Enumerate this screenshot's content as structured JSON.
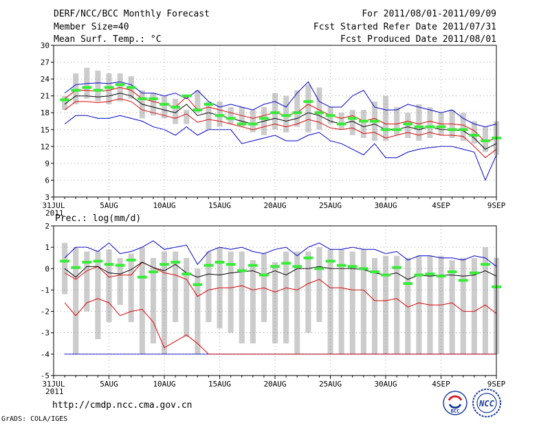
{
  "header": {
    "title": "DERF/NCC/BCC Monthly Forecast",
    "member_size": "Member Size=40",
    "variable": "Mean Surf. Temp.: °C",
    "period": "For 2011/08/01-2011/09/09",
    "started": "Fcst Started Refer Date 2011/07/31",
    "produced": "Fcst Produced Date 2011/08/01"
  },
  "footer": {
    "url": "http://cmdp.ncc.cma.gov.cn",
    "grads": "GrADS: COLA/IGES",
    "logo_bcc": "BCC",
    "logo_ncc": "NCC"
  },
  "colors": {
    "box": "#cccccc",
    "median": "#33ee33",
    "mean": "#000000",
    "sd": "#dd0000",
    "range": "#0000cc",
    "grid": "#888888"
  },
  "chart_data": [
    {
      "type": "box",
      "title": "Mean Surf. Temp.: °C",
      "xlabel": "",
      "ylabel": "°C",
      "ylim": [
        3,
        30
      ],
      "yticks": [
        3,
        6,
        9,
        12,
        15,
        18,
        21,
        24,
        27,
        30
      ],
      "ytick_labels": [
        "3",
        "6",
        "9",
        "12",
        "15",
        "18",
        "21",
        "24",
        "27",
        "30"
      ],
      "xlim": [
        0,
        40
      ],
      "xticks": [
        0,
        5,
        10,
        15,
        20,
        25,
        30,
        35,
        40
      ],
      "xtick_labels": [
        "31JUL",
        "5AUG",
        "10AUG",
        "15AUG",
        "20AUG",
        "25AUG",
        "30AUG",
        "4SEP",
        "9SEP"
      ],
      "year_label": "2011",
      "grid": true,
      "days": [
        1,
        2,
        3,
        4,
        5,
        6,
        7,
        8,
        9,
        10,
        11,
        12,
        13,
        14,
        15,
        16,
        17,
        18,
        19,
        20,
        21,
        22,
        23,
        24,
        25,
        26,
        27,
        28,
        29,
        30,
        31,
        32,
        33,
        34,
        35,
        36,
        37,
        38,
        39,
        40
      ],
      "box_low": [
        18.5,
        19.5,
        20.5,
        20,
        19.5,
        20,
        20.5,
        17,
        17.5,
        17,
        16,
        16,
        18,
        15,
        15.5,
        16,
        15.5,
        14.5,
        14,
        15,
        14.5,
        15.5,
        14.5,
        15,
        16,
        15,
        14,
        13.5,
        13,
        13,
        14,
        13.5,
        13,
        13.5,
        14,
        13.5,
        13,
        12.5,
        11,
        10.5
      ],
      "box_high": [
        21,
        25,
        26,
        25.5,
        25,
        25,
        24.5,
        22,
        21.5,
        21,
        20.5,
        18.5,
        22,
        20,
        20,
        19,
        19,
        18.5,
        19,
        21.5,
        21,
        22,
        23,
        22.5,
        19,
        18,
        18.5,
        18.5,
        20,
        21,
        19,
        18,
        19.5,
        19,
        18,
        18.5,
        18,
        16.5,
        15.5,
        16.5
      ],
      "median": [
        20.3,
        22,
        22.5,
        22,
        22.5,
        23,
        22.5,
        20.5,
        20.5,
        19.5,
        19,
        21,
        18.5,
        19.5,
        17.5,
        17,
        16,
        16,
        17,
        18,
        17.5,
        18,
        20,
        18,
        17.5,
        16,
        17,
        16.5,
        16.5,
        15,
        15,
        16,
        15.5,
        15.5,
        15.5,
        15,
        15,
        14,
        13,
        13.5
      ],
      "mean": [
        19.5,
        21,
        21,
        20.8,
        21,
        21.5,
        21,
        19.5,
        19,
        18.5,
        18,
        19.5,
        17.5,
        18,
        17.5,
        17,
        16.5,
        16,
        16.5,
        17,
        16.5,
        17,
        18,
        17.5,
        16.5,
        16,
        16.5,
        15.5,
        16,
        15,
        15,
        15.5,
        15,
        15.5,
        15,
        15,
        14.8,
        13.5,
        11.5,
        12.5
      ],
      "mean_plus_sd": [
        20.5,
        22,
        22,
        21.8,
        22,
        22.5,
        22,
        20.5,
        20,
        19.5,
        19,
        20.8,
        18.5,
        19,
        18.5,
        18,
        17.5,
        17,
        17.5,
        18,
        17.5,
        18,
        19.5,
        18.5,
        17.5,
        17,
        17.5,
        16.5,
        17,
        16,
        16,
        16.5,
        16,
        16.5,
        16,
        16,
        15.8,
        14.8,
        12.8,
        13.5
      ],
      "mean_minus_sd": [
        18.5,
        20,
        20,
        19.8,
        20,
        20.5,
        20,
        18.5,
        18,
        17.5,
        17,
        17.8,
        16.3,
        16.8,
        16.5,
        16,
        15.5,
        15,
        15.5,
        16,
        15.5,
        16,
        16.8,
        16.3,
        15.3,
        15,
        15.3,
        14.3,
        14.5,
        13.5,
        14,
        14.5,
        14,
        14.5,
        14,
        14,
        13.8,
        12,
        10,
        11.5
      ],
      "max": [
        21.5,
        23,
        23.2,
        23.3,
        23.2,
        23.5,
        23,
        21.5,
        21.5,
        21,
        21.5,
        20.5,
        22,
        20,
        19,
        19.5,
        19,
        18.5,
        19.5,
        20,
        19,
        21.5,
        23.5,
        20,
        19,
        19,
        21,
        22,
        19,
        18.5,
        18.5,
        19.5,
        19,
        18.5,
        18,
        18.5,
        17,
        16,
        15.5,
        16
      ],
      "min": [
        16,
        17.5,
        17.5,
        17,
        17,
        17.5,
        17,
        16.5,
        15.5,
        15,
        14,
        15.5,
        14,
        15,
        15,
        15,
        12.5,
        13,
        13.5,
        14,
        13,
        13,
        14,
        14.5,
        13,
        12.5,
        11.5,
        10.5,
        12.5,
        10,
        10,
        11,
        11.5,
        11.8,
        12,
        12,
        11.5,
        11,
        6,
        10.5
      ]
    },
    {
      "type": "box",
      "title": "Prec.: log(mm/d)",
      "xlabel": "",
      "ylabel": "log(mm/d)",
      "ylim": [
        -5,
        2
      ],
      "yticks": [
        -5,
        -4,
        -3,
        -2,
        -1,
        0,
        1,
        2
      ],
      "ytick_labels": [
        "-5",
        "-4",
        "-3",
        "-2",
        "-1",
        "0",
        "1",
        "2"
      ],
      "xlim": [
        0,
        40
      ],
      "xticks": [
        0,
        5,
        10,
        15,
        20,
        25,
        30,
        35,
        40
      ],
      "xtick_labels": [
        "31JUL",
        "5AUG",
        "10AUG",
        "15AUG",
        "20AUG",
        "25AUG",
        "30AUG",
        "4SEP",
        "9SEP"
      ],
      "year_label": "2011",
      "grid": true,
      "days": [
        1,
        2,
        3,
        4,
        5,
        6,
        7,
        8,
        9,
        10,
        11,
        12,
        13,
        14,
        15,
        16,
        17,
        18,
        19,
        20,
        21,
        22,
        23,
        24,
        25,
        26,
        27,
        28,
        29,
        30,
        31,
        32,
        33,
        34,
        35,
        36,
        37,
        38,
        39,
        40
      ],
      "box_low": [
        -1.2,
        -4,
        -2,
        -3.3,
        -2.5,
        -1.7,
        -2.5,
        -4,
        -3.5,
        -4,
        -2.5,
        -3.2,
        -4,
        -2.5,
        -2.8,
        -3,
        -3.5,
        -3.5,
        -2.5,
        -3.5,
        -3.5,
        -4,
        -3,
        -2.5,
        -4,
        -4,
        -4,
        -4,
        -4,
        -4,
        -4,
        -4,
        -4,
        -4,
        -4,
        -4,
        -4,
        -4,
        -4,
        -4
      ],
      "box_high": [
        1.2,
        1,
        0.8,
        0.8,
        0.9,
        0.5,
        0.7,
        1,
        0.5,
        0.8,
        0.8,
        0.5,
        0,
        0.8,
        1,
        0.8,
        0.8,
        0.4,
        0.7,
        0.3,
        0.8,
        0.8,
        0.8,
        1,
        0.9,
        0.9,
        0.8,
        0.9,
        0.5,
        0.6,
        0.6,
        0.5,
        0.6,
        0.6,
        0.6,
        0.4,
        0.5,
        0.5,
        1,
        0.5
      ],
      "median": [
        0.35,
        0.05,
        0.3,
        0.35,
        0.2,
        0.15,
        0.4,
        -0.4,
        -0.15,
        0.2,
        0.3,
        -0.25,
        -0.75,
        0.15,
        0.3,
        0.2,
        -0.1,
        0.15,
        -0.3,
        0.1,
        0.25,
        0.1,
        0.5,
        0,
        0.35,
        0.15,
        0.1,
        0,
        -0.15,
        -0.3,
        0.05,
        -0.7,
        -0.3,
        -0.25,
        -0.35,
        -0.15,
        -0.55,
        -0.2,
        0.2,
        -0.85
      ],
      "mean": [
        0,
        -0.4,
        0.1,
        0.1,
        -0.2,
        -0.25,
        -0.05,
        0.3,
        0.05,
        -0.1,
        0.2,
        -0.2,
        -0.4,
        -0.25,
        -0.3,
        -0.2,
        -0.15,
        -0.1,
        -0.3,
        -0.1,
        -0.3,
        0,
        0,
        0.1,
        0,
        0,
        0,
        -0.05,
        -0.2,
        -0.3,
        -0.2,
        -0.5,
        -0.3,
        -0.35,
        -0.3,
        -0.3,
        -0.35,
        -0.3,
        -0.1,
        -0.35
      ],
      "mean_plus_sd": [
        -0.2,
        -0.5,
        -0.1,
        0.1,
        -0.4,
        -0.3,
        -0.3,
        0.3,
        0.05,
        -0.2,
        -0.3,
        -0.5,
        -1.3,
        -1,
        -0.9,
        -0.9,
        -0.8,
        -1,
        -0.9,
        -1.1,
        -0.9,
        -1,
        -0.7,
        -0.5,
        -0.9,
        -0.9,
        -1,
        -1,
        -1.5,
        -1.5,
        -1.4,
        -1.8,
        -1.6,
        -1.7,
        -1.7,
        -1.6,
        -2,
        -2,
        -1.7,
        -2.1
      ],
      "mean_minus_sd": [
        -1.6,
        -2.2,
        -1.6,
        -1.4,
        -1.6,
        -2.2,
        -2,
        -1.9,
        -2.5,
        -3.7,
        -3.4,
        -3.1,
        -3.5,
        -4,
        -4,
        -4,
        -4,
        -4,
        -4,
        -4,
        -4,
        -4,
        -4,
        -4,
        -4,
        -4,
        -4,
        -4,
        -4,
        -4,
        -4,
        -4,
        -4,
        -4,
        -4,
        -4,
        -4,
        -4,
        -4,
        -4
      ],
      "max": [
        0.5,
        1,
        1,
        0.8,
        1.2,
        0.7,
        0.8,
        1,
        1.3,
        0.9,
        1,
        1.1,
        0.2,
        0.8,
        1,
        0.9,
        1,
        0.8,
        0.7,
        0.9,
        1,
        0.6,
        1,
        1.2,
        0.9,
        0.9,
        1,
        0.9,
        0.9,
        0.7,
        0.8,
        0.4,
        0.6,
        0.6,
        0.5,
        0.5,
        0.4,
        0.6,
        0.5,
        0.1
      ],
      "min": [
        -4,
        -4,
        -4,
        -4,
        -4,
        -4,
        -4,
        -4,
        -4,
        -4,
        -4,
        -4,
        -4,
        -4,
        -4,
        -4,
        -4,
        -4,
        -4,
        -4,
        -4,
        -4,
        -4,
        -4,
        -4,
        -4,
        -4,
        -4,
        -4,
        -4,
        -4,
        -4,
        -4,
        -4,
        -4,
        -4,
        -4,
        -4,
        -4,
        -4
      ]
    }
  ]
}
